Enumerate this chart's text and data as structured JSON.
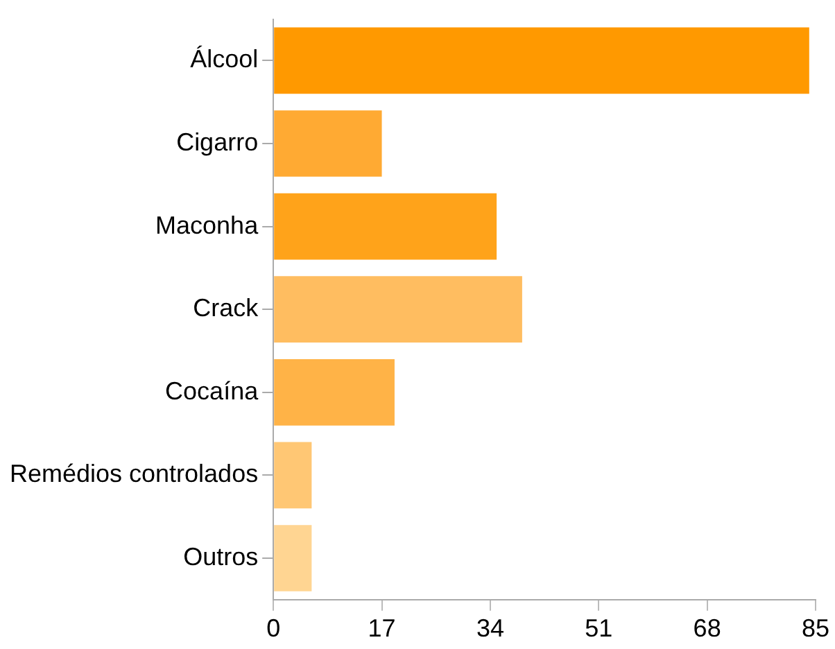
{
  "chart_data": {
    "type": "bar",
    "orientation": "horizontal",
    "categories": [
      "Álcool",
      "Cigarro",
      "Maconha",
      "Crack",
      "Cocaína",
      "Remédios controlados",
      "Outros"
    ],
    "values": [
      84,
      17,
      35,
      39,
      19,
      6,
      6
    ],
    "colors": [
      "#ff9900",
      "#ffaa33",
      "#ffa31a",
      "#ffbd60",
      "#ffb347",
      "#ffc774",
      "#ffd592"
    ],
    "xlim": [
      0,
      85
    ],
    "xticks": [
      0,
      17,
      34,
      51,
      68,
      85
    ],
    "grid": false,
    "legend": false
  }
}
